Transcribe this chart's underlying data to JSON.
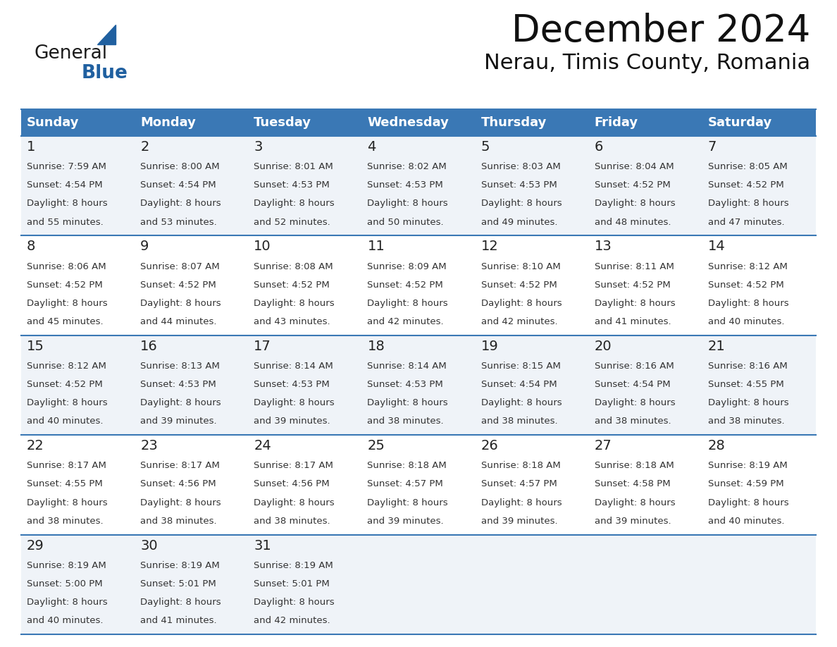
{
  "title": "December 2024",
  "subtitle": "Nerau, Timis County, Romania",
  "header_bg_color": "#3a78b5",
  "header_text_color": "#ffffff",
  "row_bg_colors": [
    "#eff3f8",
    "#ffffff"
  ],
  "border_color": "#3a78b5",
  "text_color": "#333333",
  "day_names": [
    "Sunday",
    "Monday",
    "Tuesday",
    "Wednesday",
    "Thursday",
    "Friday",
    "Saturday"
  ],
  "days": [
    {
      "date": 1,
      "col": 0,
      "row": 0,
      "sunrise": "7:59 AM",
      "sunset": "4:54 PM",
      "daylight": "8 hours and 55 minutes."
    },
    {
      "date": 2,
      "col": 1,
      "row": 0,
      "sunrise": "8:00 AM",
      "sunset": "4:54 PM",
      "daylight": "8 hours and 53 minutes."
    },
    {
      "date": 3,
      "col": 2,
      "row": 0,
      "sunrise": "8:01 AM",
      "sunset": "4:53 PM",
      "daylight": "8 hours and 52 minutes."
    },
    {
      "date": 4,
      "col": 3,
      "row": 0,
      "sunrise": "8:02 AM",
      "sunset": "4:53 PM",
      "daylight": "8 hours and 50 minutes."
    },
    {
      "date": 5,
      "col": 4,
      "row": 0,
      "sunrise": "8:03 AM",
      "sunset": "4:53 PM",
      "daylight": "8 hours and 49 minutes."
    },
    {
      "date": 6,
      "col": 5,
      "row": 0,
      "sunrise": "8:04 AM",
      "sunset": "4:52 PM",
      "daylight": "8 hours and 48 minutes."
    },
    {
      "date": 7,
      "col": 6,
      "row": 0,
      "sunrise": "8:05 AM",
      "sunset": "4:52 PM",
      "daylight": "8 hours and 47 minutes."
    },
    {
      "date": 8,
      "col": 0,
      "row": 1,
      "sunrise": "8:06 AM",
      "sunset": "4:52 PM",
      "daylight": "8 hours and 45 minutes."
    },
    {
      "date": 9,
      "col": 1,
      "row": 1,
      "sunrise": "8:07 AM",
      "sunset": "4:52 PM",
      "daylight": "8 hours and 44 minutes."
    },
    {
      "date": 10,
      "col": 2,
      "row": 1,
      "sunrise": "8:08 AM",
      "sunset": "4:52 PM",
      "daylight": "8 hours and 43 minutes."
    },
    {
      "date": 11,
      "col": 3,
      "row": 1,
      "sunrise": "8:09 AM",
      "sunset": "4:52 PM",
      "daylight": "8 hours and 42 minutes."
    },
    {
      "date": 12,
      "col": 4,
      "row": 1,
      "sunrise": "8:10 AM",
      "sunset": "4:52 PM",
      "daylight": "8 hours and 42 minutes."
    },
    {
      "date": 13,
      "col": 5,
      "row": 1,
      "sunrise": "8:11 AM",
      "sunset": "4:52 PM",
      "daylight": "8 hours and 41 minutes."
    },
    {
      "date": 14,
      "col": 6,
      "row": 1,
      "sunrise": "8:12 AM",
      "sunset": "4:52 PM",
      "daylight": "8 hours and 40 minutes."
    },
    {
      "date": 15,
      "col": 0,
      "row": 2,
      "sunrise": "8:12 AM",
      "sunset": "4:52 PM",
      "daylight": "8 hours and 40 minutes."
    },
    {
      "date": 16,
      "col": 1,
      "row": 2,
      "sunrise": "8:13 AM",
      "sunset": "4:53 PM",
      "daylight": "8 hours and 39 minutes."
    },
    {
      "date": 17,
      "col": 2,
      "row": 2,
      "sunrise": "8:14 AM",
      "sunset": "4:53 PM",
      "daylight": "8 hours and 39 minutes."
    },
    {
      "date": 18,
      "col": 3,
      "row": 2,
      "sunrise": "8:14 AM",
      "sunset": "4:53 PM",
      "daylight": "8 hours and 38 minutes."
    },
    {
      "date": 19,
      "col": 4,
      "row": 2,
      "sunrise": "8:15 AM",
      "sunset": "4:54 PM",
      "daylight": "8 hours and 38 minutes."
    },
    {
      "date": 20,
      "col": 5,
      "row": 2,
      "sunrise": "8:16 AM",
      "sunset": "4:54 PM",
      "daylight": "8 hours and 38 minutes."
    },
    {
      "date": 21,
      "col": 6,
      "row": 2,
      "sunrise": "8:16 AM",
      "sunset": "4:55 PM",
      "daylight": "8 hours and 38 minutes."
    },
    {
      "date": 22,
      "col": 0,
      "row": 3,
      "sunrise": "8:17 AM",
      "sunset": "4:55 PM",
      "daylight": "8 hours and 38 minutes."
    },
    {
      "date": 23,
      "col": 1,
      "row": 3,
      "sunrise": "8:17 AM",
      "sunset": "4:56 PM",
      "daylight": "8 hours and 38 minutes."
    },
    {
      "date": 24,
      "col": 2,
      "row": 3,
      "sunrise": "8:17 AM",
      "sunset": "4:56 PM",
      "daylight": "8 hours and 38 minutes."
    },
    {
      "date": 25,
      "col": 3,
      "row": 3,
      "sunrise": "8:18 AM",
      "sunset": "4:57 PM",
      "daylight": "8 hours and 39 minutes."
    },
    {
      "date": 26,
      "col": 4,
      "row": 3,
      "sunrise": "8:18 AM",
      "sunset": "4:57 PM",
      "daylight": "8 hours and 39 minutes."
    },
    {
      "date": 27,
      "col": 5,
      "row": 3,
      "sunrise": "8:18 AM",
      "sunset": "4:58 PM",
      "daylight": "8 hours and 39 minutes."
    },
    {
      "date": 28,
      "col": 6,
      "row": 3,
      "sunrise": "8:19 AM",
      "sunset": "4:59 PM",
      "daylight": "8 hours and 40 minutes."
    },
    {
      "date": 29,
      "col": 0,
      "row": 4,
      "sunrise": "8:19 AM",
      "sunset": "5:00 PM",
      "daylight": "8 hours and 40 minutes."
    },
    {
      "date": 30,
      "col": 1,
      "row": 4,
      "sunrise": "8:19 AM",
      "sunset": "5:01 PM",
      "daylight": "8 hours and 41 minutes."
    },
    {
      "date": 31,
      "col": 2,
      "row": 4,
      "sunrise": "8:19 AM",
      "sunset": "5:01 PM",
      "daylight": "8 hours and 42 minutes."
    }
  ],
  "logo_color_general": "#1a1a1a",
  "logo_color_blue": "#2060a0",
  "logo_triangle_color": "#2060a0",
  "title_fontsize": 38,
  "subtitle_fontsize": 22,
  "header_fontsize": 13,
  "date_fontsize": 14,
  "text_fontsize": 9.5
}
